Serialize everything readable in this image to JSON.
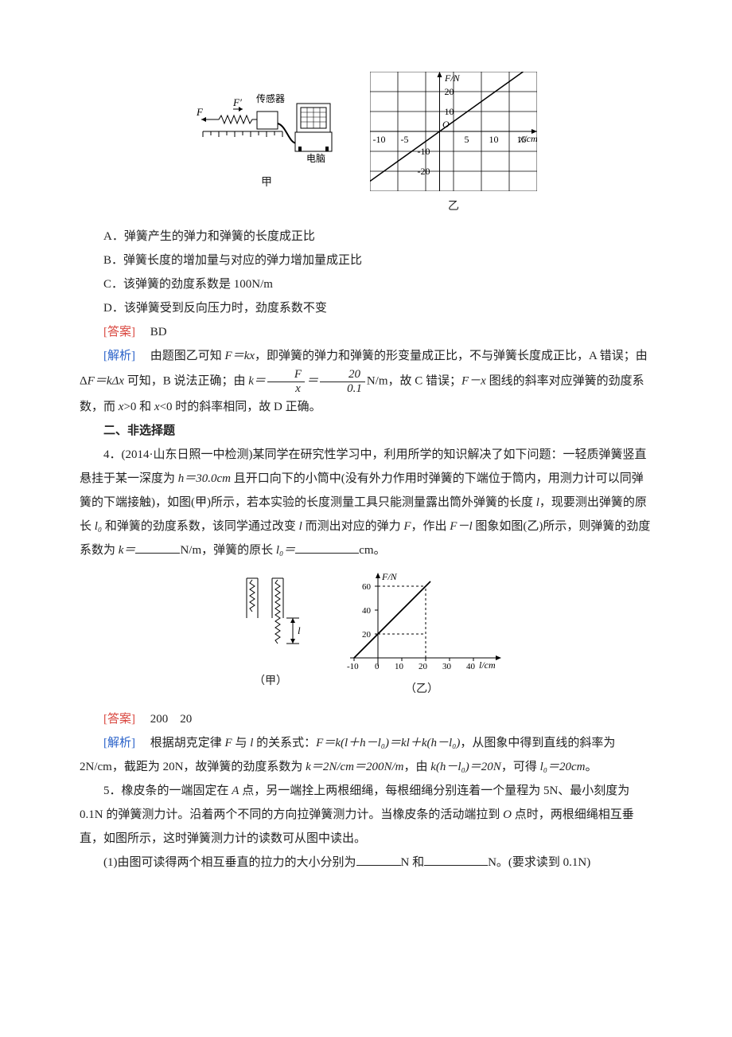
{
  "figure1": {
    "left": {
      "label_F": "F",
      "label_Fprime": "F′",
      "label_sensor": "传感器",
      "label_computer": "电脑",
      "caption": "甲",
      "colors": {
        "stroke": "#000000",
        "fill_bg": "#ffffff"
      }
    },
    "right": {
      "caption": "乙",
      "type": "line",
      "x_ticks": [
        -10,
        -5,
        5,
        10,
        15
      ],
      "y_ticks": [
        -20,
        -10,
        10,
        20
      ],
      "y_label": "F/N",
      "x_label": "x/cm",
      "origin_label": "O",
      "xlim": [
        -12.5,
        17.5
      ],
      "ylim": [
        -30,
        30
      ],
      "grid_color": "#000000",
      "bg": "#ffffff",
      "line_points": [
        [
          -12.5,
          -25
        ],
        [
          15,
          30
        ]
      ],
      "label_fontsize": 12
    }
  },
  "q_options": {
    "A": "A．弹簧产生的弹力和弹簧的长度成正比",
    "B": "B．弹簧长度的增加量与对应的弹力增加量成正比",
    "C": "C．该弹簧的劲度系数是 100N/m",
    "D": "D．该弹簧受到反向压力时，劲度系数不变"
  },
  "labels": {
    "answer": "[答案]",
    "explain": "[解析]",
    "section2": "二、非选择题"
  },
  "q_answer": "BD",
  "q_explain_part1a": "由题图乙可知 ",
  "q_explain_part1b": "，即弹簧的弹力和弹簧的形变量成正比，不与弹簧长度成正比，A 错误；由 Δ",
  "q_explain_part1c": " 可知，B 说法正确；由 ",
  "q_explain_part1d": "N/m，故 C 错误；",
  "q_explain_part1e": " 图线的斜率对应弹簧的劲度系数，而 ",
  "q_explain_part1f": ">0 和 ",
  "q_explain_part1g": "<0 时的斜率相同，故 D 正确。",
  "eq1": "F＝kx",
  "eq2": "F＝kΔx",
  "eq3a": "k＝",
  "eq3_frac1_num": "F",
  "eq3_frac1_den": "x",
  "eq3b": "＝",
  "eq3_frac2_num": "20",
  "eq3_frac2_den": "0.1",
  "eq4": "F－x",
  "q4": {
    "num": "4．(2014·山东日照一中检测)某同学在研究性学习中，利用所学的知识解决了如下问题：一轻质弹簧竖直悬挂于某一深度为 ",
    "h": "h＝30.0cm",
    "text1": " 且开口向下的小筒中(没有外力作用时弹簧的下端位于筒内，用测力计可以同弹簧的下端接触)，如图(甲)所示，若本实验的长度测量工具只能测量露出筒外弹簧的长度 ",
    "l": "l",
    "text2": "，现要测出弹簧的原长 ",
    "l0": "l₀",
    "text3": " 和弹簧的劲度系数，该同学通过改变 ",
    "text4": " 而测出对应的弹力 ",
    "F": "F",
    "text5": "，作出 ",
    "Fl": "F－l",
    "text6": " 图象如图(乙)所示，则弹簧的劲度系数为 ",
    "k": "k＝",
    "text7": "N/m，弹簧的原长 ",
    "l0eq": "l₀＝",
    "text8": "cm。"
  },
  "figure2": {
    "left": {
      "caption": "（甲）",
      "label_l": "l",
      "colors": {
        "stroke": "#000000"
      }
    },
    "right": {
      "caption": "（乙）",
      "type": "line",
      "y_label": "F/N",
      "x_label": "l/cm",
      "y_ticks": [
        0,
        20,
        40,
        60
      ],
      "x_ticks": [
        -10,
        0,
        10,
        20,
        30,
        40
      ],
      "xlim": [
        -12,
        42
      ],
      "ylim": [
        -5,
        70
      ],
      "line_points": [
        [
          -10,
          0
        ],
        [
          22,
          64
        ]
      ],
      "dash_h": [
        [
          0,
          20,
          20,
          20
        ],
        [
          0,
          60,
          20,
          60
        ]
      ],
      "dash_v": [
        [
          20,
          0,
          20,
          60
        ]
      ],
      "grid_color": "#000000",
      "dash_color": "#000000",
      "label_fontsize": 12
    }
  },
  "q4_answer": "200　20",
  "q4_explain_a": "根据胡克定律 ",
  "q4_explain_b": " 与 ",
  "q4_explain_c": " 的关系式：",
  "q4_eq1": "F＝k(l＋h－l₀)＝kl＋k(h－l₀)",
  "q4_explain_d": "，从图象中得到直线的斜率为 2N/cm，截距为 20N，故弹簧的劲度系数为 ",
  "q4_eq2": "k＝2N/cm＝200N/m",
  "q4_explain_e": "，由 ",
  "q4_eq3": "k(h－l₀)＝20N",
  "q4_explain_f": "，可得 ",
  "q4_eq4": "l₀＝20cm",
  "q4_explain_g": "。",
  "q5": {
    "text1": "5．橡皮条的一端固定在 ",
    "A": "A",
    "text2": " 点，另一端拴上两根细绳，每根细绳分别连着一个量程为 5N、最小刻度为 0.1N 的弹簧测力计。沿着两个不同的方向拉弹簧测力计。当橡皮条的活动端拉到 ",
    "O": "O",
    "text3": " 点时，两根细绳相互垂直，如图所示，这时弹簧测力计的读数可从图中读出。",
    "sub1a": "(1)由图可读得两个相互垂直的拉力的大小分别为",
    "sub1b": "N 和",
    "sub1c": "N。(要求读到 0.1N)"
  }
}
